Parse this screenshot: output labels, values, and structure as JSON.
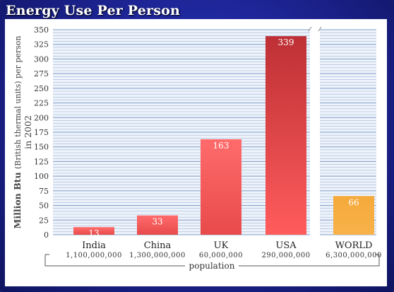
{
  "header": {
    "title": "Energy Use Per Person"
  },
  "chart_data": {
    "type": "bar",
    "title": "Energy Use Per Person",
    "ylabel_bold": "Million Btu",
    "ylabel_rest": "(British thermal units) per person",
    "ylabel_line2": "in 2002",
    "xlabel": "population",
    "ylim": [
      0,
      350
    ],
    "yticks": [
      0,
      25,
      50,
      75,
      100,
      125,
      150,
      175,
      200,
      225,
      250,
      275,
      300,
      325,
      350
    ],
    "grid": true,
    "categories": [
      "India",
      "China",
      "UK",
      "USA",
      "WORLD"
    ],
    "populations": [
      "1,100,000,000",
      "1,300,000,000",
      "60,000,000",
      "290,000,000",
      "6,300,000,000"
    ],
    "values": [
      13,
      33,
      163,
      339,
      66
    ],
    "colors": {
      "country_bar_top": "#ff6b6b",
      "country_bar_bottom": "#e84a4a",
      "usa_bar_top": "#bd3035",
      "world_bar": "#f5a93a",
      "grid_line": "#9fb6d6",
      "plot_bg": "#eef3fb"
    }
  }
}
